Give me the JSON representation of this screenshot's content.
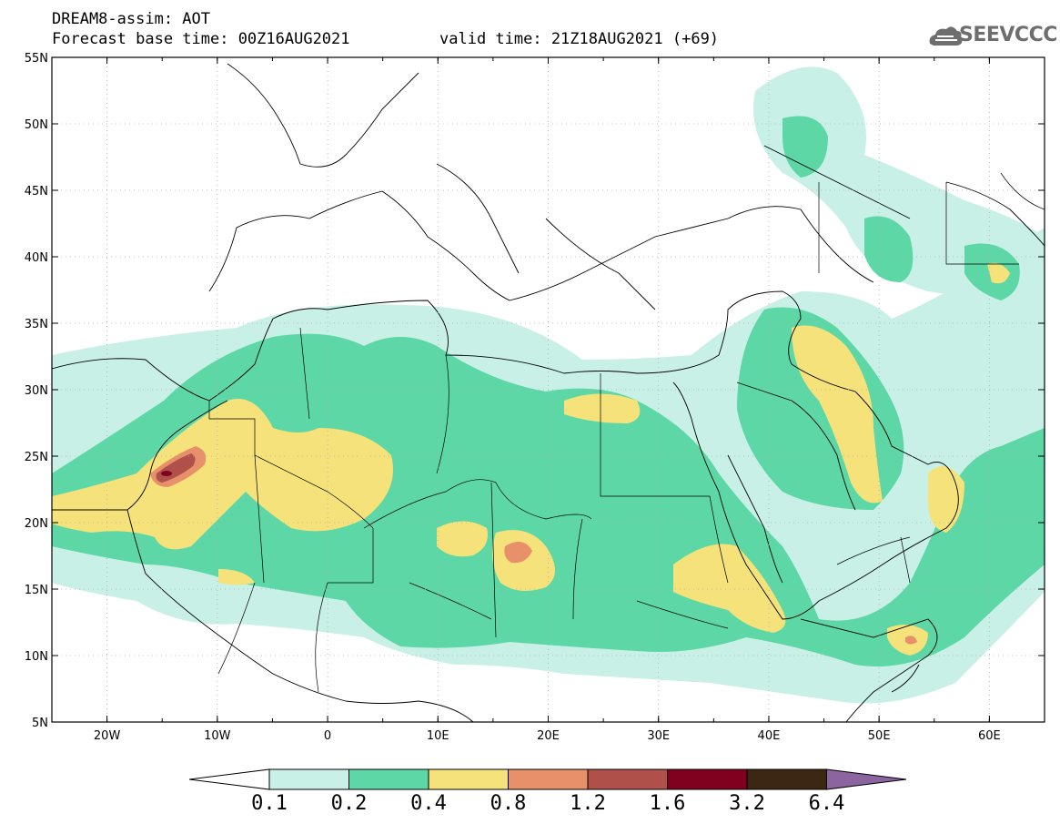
{
  "header": {
    "title": "DREAM8-assim: AOT",
    "base_time": "Forecast base time: 00Z16AUG2021",
    "valid_time": "valid time: 21Z18AUG2021 (+69)",
    "logo_text": "SEEVCCC"
  },
  "map": {
    "lon_range": [
      -25,
      65
    ],
    "lat_range": [
      5,
      55
    ],
    "lon_ticks": [
      "20W",
      "10W",
      "0",
      "10E",
      "20E",
      "30E",
      "40E",
      "50E",
      "60E"
    ],
    "lat_ticks": [
      "5N",
      "10N",
      "15N",
      "20N",
      "25N",
      "30N",
      "35N",
      "40N",
      "45N",
      "50N",
      "55N"
    ]
  },
  "colorbar": {
    "levels": [
      "0.1",
      "0.2",
      "0.4",
      "0.8",
      "1.2",
      "1.6",
      "3.2",
      "6.4"
    ],
    "colors": [
      "#ffffff",
      "#c8f0e6",
      "#5dd7a6",
      "#f5e27a",
      "#e8906a",
      "#b0504a",
      "#800020",
      "#3c2812",
      "#8c64a0"
    ]
  }
}
